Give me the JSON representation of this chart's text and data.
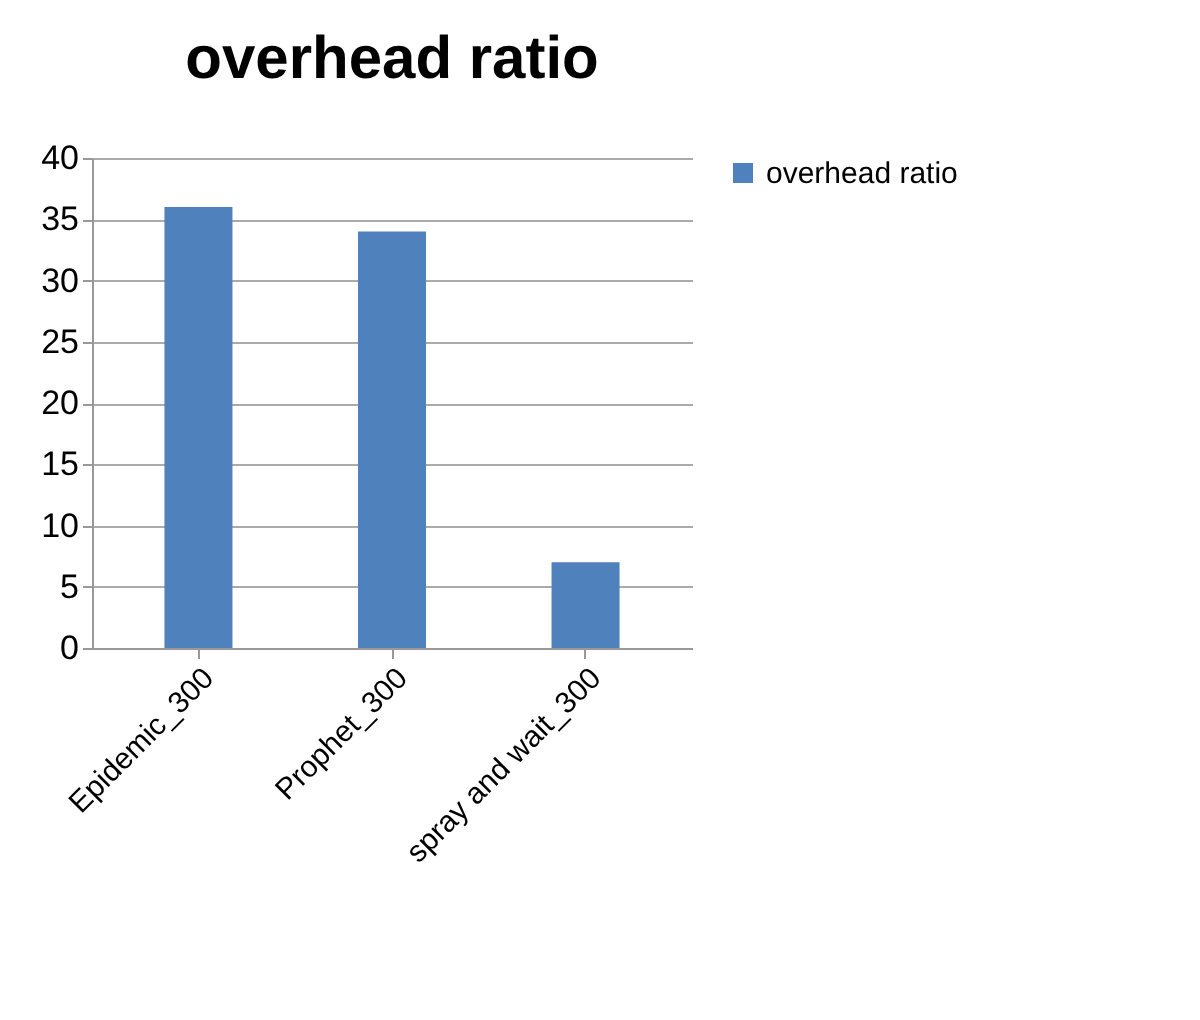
{
  "chart_data": {
    "type": "bar",
    "title": "overhead ratio",
    "categories": [
      "Epidemic_300",
      "Prophet_300",
      "spray and wait_300"
    ],
    "series": [
      {
        "name": "overhead ratio",
        "color": "#4f81bd",
        "values": [
          36,
          34,
          7
        ]
      }
    ],
    "ylim": [
      0,
      40
    ],
    "yticks": [
      0,
      5,
      10,
      15,
      20,
      25,
      30,
      35,
      40
    ],
    "grid": "y",
    "legend": "right"
  }
}
